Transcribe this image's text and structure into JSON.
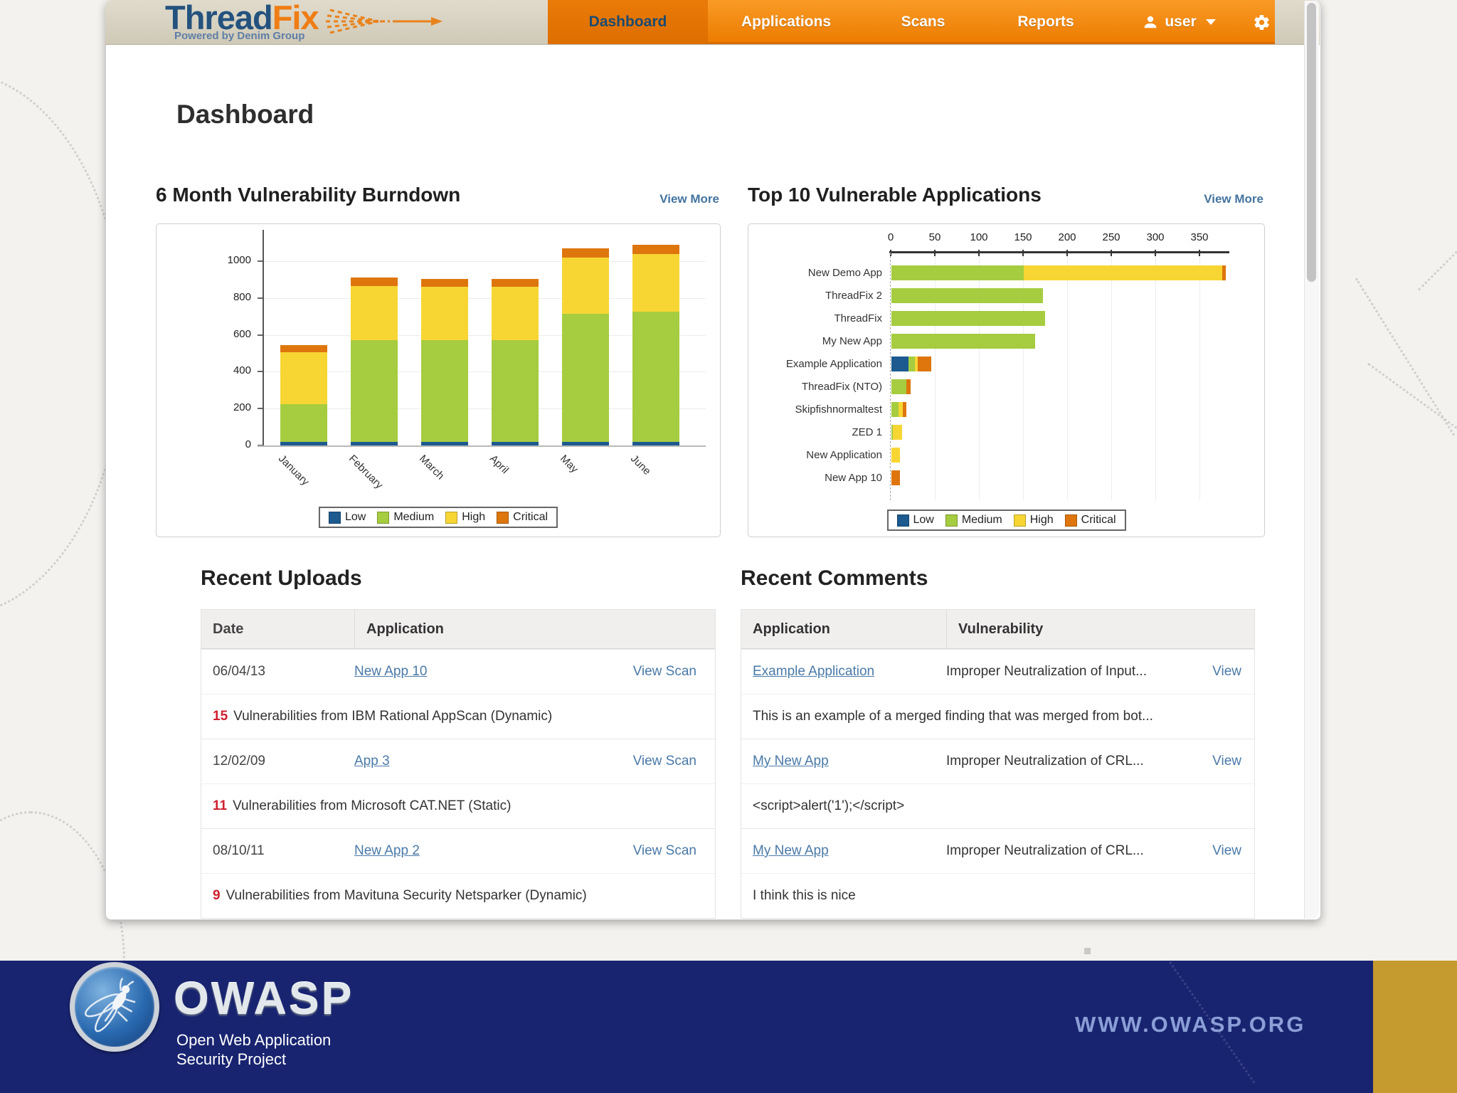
{
  "page": {
    "title": "Dashboard"
  },
  "header": {
    "logo": {
      "brand_thread": "Thread",
      "brand_fix": "Fix",
      "tagline": "Powered by Denim Group"
    },
    "nav": {
      "tabs": [
        {
          "label": "Dashboard",
          "active": true
        },
        {
          "label": "Applications",
          "active": false
        },
        {
          "label": "Scans",
          "active": false
        },
        {
          "label": "Reports",
          "active": false
        }
      ],
      "user_label": "user"
    }
  },
  "burndown": {
    "title": "6 Month Vulnerability Burndown",
    "view_more": "View More"
  },
  "top10": {
    "title": "Top 10 Vulnerable Applications",
    "view_more": "View More"
  },
  "severity_colors": {
    "Low": "#1c5a8f",
    "Medium": "#a6cc40",
    "High": "#f7d634",
    "Critical": "#de760d"
  },
  "chart_data": [
    {
      "type": "bar",
      "stacked": true,
      "orientation": "vertical",
      "title": "6 Month Vulnerability Burndown",
      "categories": [
        "January",
        "February",
        "March",
        "April",
        "May",
        "June"
      ],
      "series": [
        {
          "name": "Low",
          "color": "#1c5a8f",
          "values": [
            20,
            20,
            20,
            20,
            20,
            20
          ]
        },
        {
          "name": "Medium",
          "color": "#a6cc40",
          "values": [
            205,
            550,
            550,
            550,
            695,
            705
          ]
        },
        {
          "name": "High",
          "color": "#f7d634",
          "values": [
            280,
            295,
            290,
            290,
            305,
            315
          ]
        },
        {
          "name": "Critical",
          "color": "#de760d",
          "values": [
            40,
            45,
            45,
            45,
            50,
            50
          ]
        }
      ],
      "ylim": [
        0,
        1100
      ],
      "yticks": [
        0,
        200,
        400,
        600,
        800,
        1000
      ],
      "legend": [
        "Low",
        "Medium",
        "High",
        "Critical"
      ],
      "legend_position": "bottom",
      "grid": true
    },
    {
      "type": "bar",
      "stacked": true,
      "orientation": "horizontal",
      "title": "Top 10 Vulnerable Applications",
      "categories": [
        "New Demo App",
        "ThreadFix 2",
        "ThreadFix",
        "My New App",
        "Example Application",
        "ThreadFix (NTO)",
        "Skipfishnormaltest",
        "ZED 1",
        "New Application",
        "New App 10"
      ],
      "series": [
        {
          "name": "Low",
          "color": "#1c5a8f",
          "values": [
            0,
            0,
            0,
            0,
            19,
            0,
            0,
            0,
            0,
            0
          ]
        },
        {
          "name": "Medium",
          "color": "#a6cc40",
          "values": [
            150,
            172,
            174,
            163,
            8,
            17,
            8,
            2,
            0,
            0
          ]
        },
        {
          "name": "High",
          "color": "#f7d634",
          "values": [
            225,
            0,
            0,
            0,
            3,
            0,
            5,
            10,
            10,
            0
          ]
        },
        {
          "name": "Critical",
          "color": "#de760d",
          "values": [
            4,
            0,
            0,
            0,
            15,
            5,
            4,
            0,
            0,
            10
          ]
        }
      ],
      "xlim": [
        0,
        380
      ],
      "xticks": [
        0,
        50,
        100,
        150,
        200,
        250,
        300,
        350
      ],
      "legend": [
        "Low",
        "Medium",
        "High",
        "Critical"
      ],
      "legend_position": "bottom",
      "grid": true
    }
  ],
  "recent_uploads": {
    "title": "Recent Uploads",
    "columns": [
      "Date",
      "Application"
    ],
    "rows": [
      {
        "date": "06/04/13",
        "application": "New App 10",
        "action": "View Scan",
        "count": "15",
        "detail": "Vulnerabilities from IBM Rational AppScan (Dynamic)"
      },
      {
        "date": "12/02/09",
        "application": "App 3",
        "action": "View Scan",
        "count": "11",
        "detail": "Vulnerabilities from Microsoft CAT.NET (Static)"
      },
      {
        "date": "08/10/11",
        "application": "New App 2",
        "action": "View Scan",
        "count": "9",
        "detail": "Vulnerabilities from Mavituna Security Netsparker (Dynamic)"
      }
    ]
  },
  "recent_comments": {
    "title": "Recent Comments",
    "columns": [
      "Application",
      "Vulnerability"
    ],
    "rows": [
      {
        "application": "Example Application",
        "vulnerability": "Improper Neutralization of Input...",
        "action": "View",
        "comment": "This is an example of a merged finding that was merged from bot..."
      },
      {
        "application": "My New App",
        "vulnerability": "Improper Neutralization of CRL...",
        "action": "View",
        "comment": "<script>alert('1');</script>"
      },
      {
        "application": "My New App",
        "vulnerability": "Improper Neutralization of CRL...",
        "action": "View",
        "comment": "I think this is nice"
      }
    ]
  },
  "footer": {
    "owasp": "OWASP",
    "subtitle_line1": "Open Web Application",
    "subtitle_line2": "Security Project",
    "url": "WWW.OWASP.ORG"
  }
}
